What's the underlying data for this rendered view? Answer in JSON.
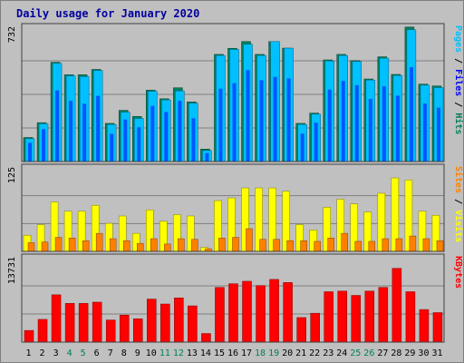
{
  "title": "Daily usage for January 2020",
  "colors": {
    "hits": "#00805c",
    "files": "#0000ff",
    "pages": "#00c0ff",
    "visits": "#ff8000",
    "sites": "#ffff00",
    "kbytes": "#ff0000",
    "weekend_label": "#00805c",
    "weekday_label": "#000000"
  },
  "chart_data": [
    {
      "type": "bar",
      "panel": "top",
      "ymax_label": "732",
      "ylim": [
        0,
        732
      ],
      "right_label": [
        {
          "text": "Pages",
          "color": "#00c0ff"
        },
        {
          "text": " / ",
          "color": "#000000"
        },
        {
          "text": "Files",
          "color": "#0000ff"
        },
        {
          "text": " / ",
          "color": "#000000"
        },
        {
          "text": "Hits",
          "color": "#00805c"
        }
      ],
      "categories": [
        "1",
        "2",
        "3",
        "4",
        "5",
        "6",
        "7",
        "8",
        "9",
        "10",
        "11",
        "12",
        "13",
        "14",
        "15",
        "16",
        "17",
        "18",
        "19",
        "20",
        "21",
        "22",
        "23",
        "24",
        "25",
        "26",
        "27",
        "28",
        "29",
        "30",
        "31"
      ],
      "series": [
        {
          "name": "Hits",
          "values": [
            131,
            212,
            541,
            473,
            473,
            502,
            208,
            279,
            246,
            389,
            342,
            402,
            325,
            68,
            584,
            617,
            654,
            584,
            654,
            618,
            208,
            264,
            554,
            584,
            550,
            450,
            571,
            475,
            733,
            422,
            412
          ]
        },
        {
          "name": "Files",
          "values": [
            102,
            176,
            388,
            331,
            315,
            358,
            151,
            229,
            187,
            303,
            270,
            331,
            236,
            46,
            397,
            427,
            498,
            443,
            461,
            453,
            152,
            212,
            392,
            439,
            416,
            341,
            410,
            359,
            514,
            316,
            294
          ]
        },
        {
          "name": "Pages",
          "values": [
            125,
            206,
            535,
            467,
            463,
            496,
            202,
            269,
            235,
            383,
            336,
            385,
            318,
            60,
            578,
            611,
            639,
            578,
            654,
            618,
            202,
            258,
            548,
            578,
            545,
            444,
            563,
            469,
            718,
            416,
            403
          ]
        }
      ]
    },
    {
      "type": "bar",
      "panel": "middle",
      "ymax_label": "125",
      "ylim": [
        0,
        125
      ],
      "right_label": [
        {
          "text": "Sites",
          "color": "#ff8000"
        },
        {
          "text": " / ",
          "color": "#000000"
        },
        {
          "text": "Visits",
          "color": "#ffff00"
        }
      ],
      "categories": [
        "1",
        "2",
        "3",
        "4",
        "5",
        "6",
        "7",
        "8",
        "9",
        "10",
        "11",
        "12",
        "13",
        "14",
        "15",
        "16",
        "17",
        "18",
        "19",
        "20",
        "21",
        "22",
        "23",
        "24",
        "25",
        "26",
        "27",
        "28",
        "29",
        "30",
        "31"
      ],
      "series": [
        {
          "name": "Visits",
          "values": [
            24,
            40,
            74,
            60,
            60,
            69,
            42,
            53,
            27,
            62,
            45,
            55,
            53,
            6,
            76,
            80,
            95,
            95,
            95,
            90,
            40,
            32,
            66,
            78,
            71,
            59,
            87,
            110,
            107,
            60,
            54
          ]
        },
        {
          "name": "Sites",
          "values": [
            13,
            14,
            21,
            20,
            16,
            27,
            19,
            16,
            12,
            19,
            11,
            19,
            18,
            4,
            20,
            21,
            34,
            18,
            18,
            16,
            16,
            15,
            20,
            27,
            15,
            15,
            19,
            19,
            23,
            19,
            16
          ]
        }
      ]
    },
    {
      "type": "bar",
      "panel": "bottom",
      "ymax_label": "13731",
      "ylim": [
        0,
        13731
      ],
      "right_label": [
        {
          "text": "KBytes",
          "color": "#ff0000"
        }
      ],
      "categories": [
        "1",
        "2",
        "3",
        "4",
        "5",
        "6",
        "7",
        "8",
        "9",
        "10",
        "11",
        "12",
        "13",
        "14",
        "15",
        "16",
        "17",
        "18",
        "19",
        "20",
        "21",
        "22",
        "23",
        "24",
        "25",
        "26",
        "27",
        "28",
        "29",
        "30",
        "31"
      ],
      "series": [
        {
          "name": "KBytes",
          "values": [
            1900,
            3700,
            7700,
            6300,
            6300,
            6500,
            3600,
            4400,
            3800,
            7000,
            6200,
            7200,
            5900,
            1400,
            8900,
            9500,
            9900,
            9200,
            10200,
            9700,
            4000,
            4700,
            8200,
            8300,
            7600,
            8300,
            8900,
            12000,
            8200,
            5300,
            4800
          ]
        }
      ]
    }
  ],
  "weekend_days": [
    "4",
    "5",
    "11",
    "12",
    "18",
    "19",
    "25",
    "26"
  ]
}
